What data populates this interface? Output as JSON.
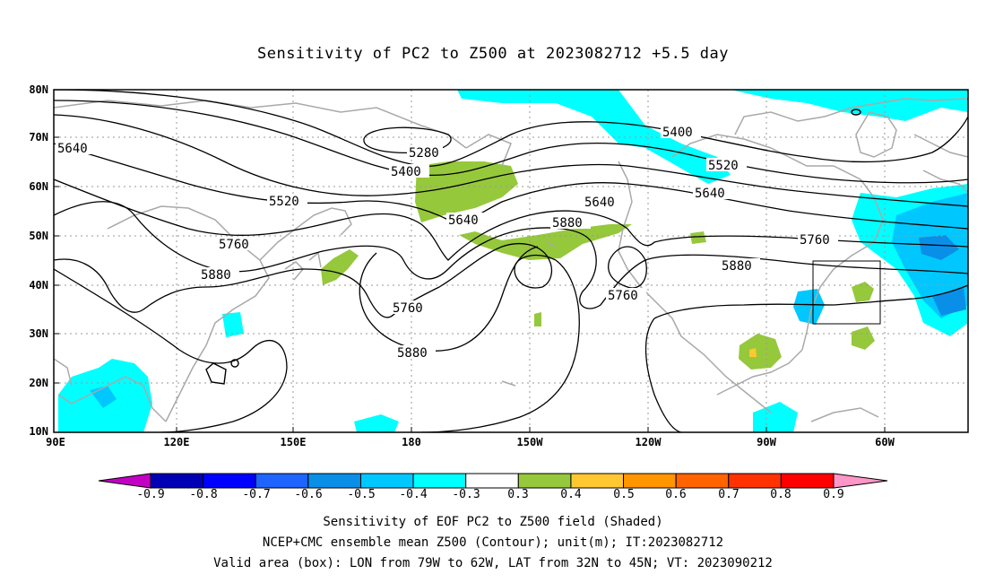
{
  "title": "Sensitivity of PC2 to Z500 at 2023082712 +5.5 day",
  "map": {
    "lat_labels": [
      "80N",
      "70N",
      "60N",
      "50N",
      "40N",
      "30N",
      "20N",
      "10N"
    ],
    "lon_labels": [
      "90E",
      "120E",
      "150E",
      "180",
      "150W",
      "120W",
      "90W",
      "60W"
    ],
    "contour_labels": [
      "5280",
      "5400",
      "5520",
      "5640",
      "5760",
      "5880",
      "5400",
      "5520",
      "5640",
      "5760",
      "5880",
      "5640",
      "5520",
      "5640",
      "5760",
      "5760",
      "5880",
      "5760",
      "5760"
    ],
    "valid_box": {
      "lon_from": "79W",
      "lon_to": "62W",
      "lat_from": "32N",
      "lat_to": "45N"
    },
    "colors": {
      "coast": "#a9a9a9",
      "contour": "#000000",
      "neg_cyan": "#00ffff",
      "neg_blue": "#00c8ff",
      "neg_dark": "#0a8fe8",
      "pos_green": "#96c83c",
      "pos_orange": "#ffc832"
    }
  },
  "colorbar": {
    "labels": [
      "-0.9",
      "-0.8",
      "-0.7",
      "-0.6",
      "-0.5",
      "-0.4",
      "-0.3",
      "0.3",
      "0.4",
      "0.5",
      "0.6",
      "0.7",
      "0.8",
      "0.9"
    ],
    "colors": [
      "#c400c4",
      "#0000b4",
      "#0000ff",
      "#1e64ff",
      "#0a8fe8",
      "#00c8ff",
      "#00ffff",
      "#ffffff",
      "#96c83c",
      "#ffc832",
      "#ff9600",
      "#ff6400",
      "#ff3200",
      "#ff0000",
      "#ff96c8"
    ]
  },
  "caption": {
    "line1": "Sensitivity of EOF PC2 to Z500 field (Shaded)",
    "line2": "NCEP+CMC ensemble mean Z500 (Contour); unit(m); IT:2023082712",
    "line3": "Valid area (box): LON from 79W to 62W, LAT from 32N to 45N; VT: 2023090212"
  }
}
